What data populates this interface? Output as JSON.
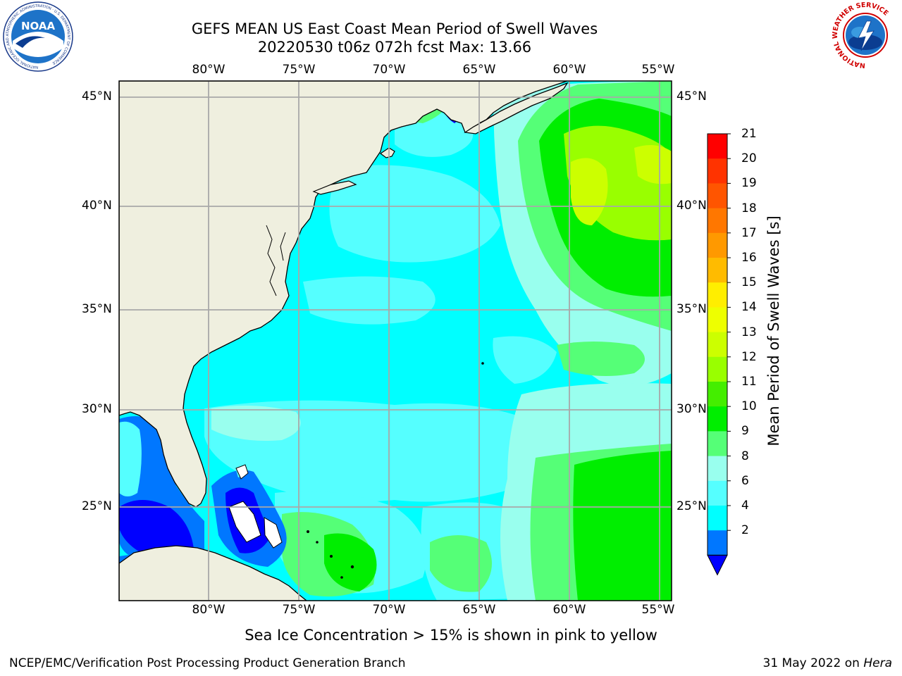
{
  "title": {
    "line1": "GEFS MEAN US East Coast Mean Period of Swell Waves",
    "line2": "20220530 t06z 072h fcst   Max: 13.66"
  },
  "map": {
    "longitude_labels": [
      "80°W",
      "75°W",
      "70°W",
      "65°W",
      "60°W",
      "55°W"
    ],
    "latitude_labels": [
      "45°N",
      "40°N",
      "35°N",
      "30°N",
      "25°N"
    ],
    "land_color": "#efefdf",
    "ocean_base_color": "#00ffff"
  },
  "colorbar": {
    "label": "Mean Period of Swell Waves [s]",
    "ticks": [
      "21",
      "20",
      "19",
      "18",
      "17",
      "16",
      "15",
      "14",
      "13",
      "12",
      "11",
      "10",
      "9",
      "8",
      "6",
      "4",
      "2"
    ],
    "colors": [
      "#ff0000",
      "#ff3300",
      "#ff5500",
      "#ff7700",
      "#ff9900",
      "#ffbb00",
      "#ffee00",
      "#eeff00",
      "#ccff00",
      "#99ff00",
      "#44ee00",
      "#00ee00",
      "#55ff77",
      "#99ffee",
      "#55ffff",
      "#00ffff",
      "#0077ff"
    ],
    "under_color": "#0000ff"
  },
  "logos": {
    "noaa_text": "NOAA",
    "noaa_ring_text": "NATIONAL OCEANIC AND ATMOSPHERIC ADMINISTRATION · U.S. DEPARTMENT OF COMMERCE",
    "nws_ring_text": "NATIONAL WEATHER SERVICE"
  },
  "footer": {
    "ice_note": "Sea Ice Concentration > 15% is shown in pink to yellow",
    "left": "NCEP/EMC/Verification Post Processing Product Generation Branch",
    "date": "31 May 2022 on",
    "machine": "Hera"
  }
}
